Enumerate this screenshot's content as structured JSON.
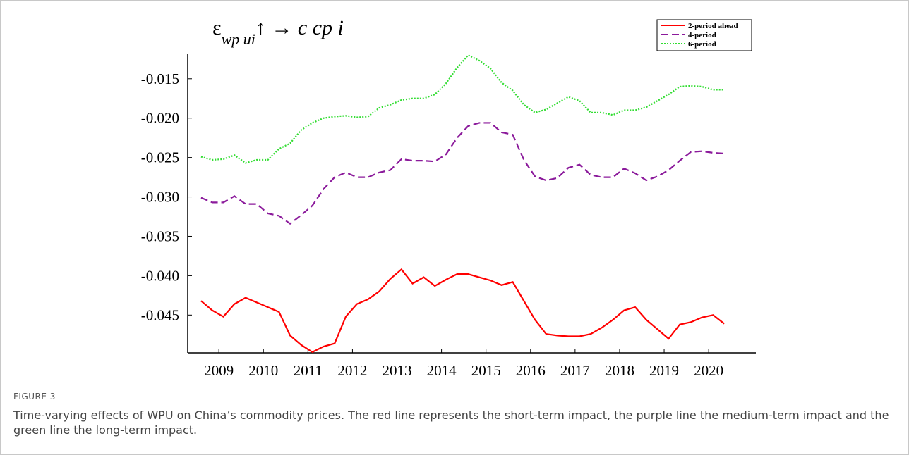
{
  "chart_data": {
    "type": "line",
    "annotation": {
      "symbol": "ε",
      "subscript": "wp ui",
      "rest": "↑ → c cp i"
    },
    "x": [
      2008.6,
      2008.85,
      2009.1,
      2009.35,
      2009.6,
      2009.85,
      2010.1,
      2010.35,
      2010.6,
      2010.85,
      2011.1,
      2011.35,
      2011.6,
      2011.85,
      2012.1,
      2012.35,
      2012.6,
      2012.85,
      2013.1,
      2013.35,
      2013.6,
      2013.85,
      2014.1,
      2014.35,
      2014.6,
      2014.85,
      2015.1,
      2015.35,
      2015.6,
      2015.85,
      2016.1,
      2016.35,
      2016.6,
      2016.85,
      2017.1,
      2017.35,
      2017.6,
      2017.85,
      2018.1,
      2018.35,
      2018.6,
      2018.85,
      2019.1,
      2019.35,
      2019.6,
      2019.85,
      2020.1,
      2020.35
    ],
    "series": [
      {
        "name": "2-period ahead",
        "color": "#ff0000",
        "dash": "solid",
        "values": [
          -0.0432,
          -0.0444,
          -0.0452,
          -0.0436,
          -0.0428,
          -0.0434,
          -0.044,
          -0.0446,
          -0.0476,
          -0.0488,
          -0.0497,
          -0.049,
          -0.0486,
          -0.0452,
          -0.0436,
          -0.043,
          -0.042,
          -0.0404,
          -0.0392,
          -0.041,
          -0.0402,
          -0.0413,
          -0.0405,
          -0.0398,
          -0.0398,
          -0.0402,
          -0.0406,
          -0.0412,
          -0.0408,
          -0.0432,
          -0.0456,
          -0.0474,
          -0.0476,
          -0.0477,
          -0.0477,
          -0.0474,
          -0.0466,
          -0.0456,
          -0.0444,
          -0.044,
          -0.0456,
          -0.0468,
          -0.048,
          -0.0462,
          -0.0459,
          -0.0453,
          -0.045,
          -0.0461
        ]
      },
      {
        "name": "4-period",
        "color": "#8b1a9b",
        "dash": "dashed",
        "values": [
          -0.0301,
          -0.0307,
          -0.0307,
          -0.0299,
          -0.0309,
          -0.0309,
          -0.0321,
          -0.0324,
          -0.0334,
          -0.0323,
          -0.0311,
          -0.029,
          -0.0275,
          -0.0269,
          -0.0275,
          -0.0275,
          -0.0269,
          -0.0266,
          -0.0252,
          -0.0254,
          -0.0254,
          -0.0255,
          -0.0246,
          -0.0225,
          -0.021,
          -0.0206,
          -0.0206,
          -0.0218,
          -0.0221,
          -0.0253,
          -0.0274,
          -0.0279,
          -0.0276,
          -0.0263,
          -0.0259,
          -0.0272,
          -0.0275,
          -0.0275,
          -0.0264,
          -0.027,
          -0.0279,
          -0.0274,
          -0.0266,
          -0.0254,
          -0.0243,
          -0.0242,
          -0.0244,
          -0.0245
        ]
      },
      {
        "name": "6-period",
        "color": "#33dd33",
        "dash": "dotted",
        "values": [
          -0.0249,
          -0.0253,
          -0.0252,
          -0.0247,
          -0.0257,
          -0.0253,
          -0.0253,
          -0.0239,
          -0.0232,
          -0.0215,
          -0.0206,
          -0.02,
          -0.0198,
          -0.0197,
          -0.0199,
          -0.0198,
          -0.0187,
          -0.0183,
          -0.0177,
          -0.0175,
          -0.0175,
          -0.017,
          -0.0156,
          -0.0136,
          -0.012,
          -0.0127,
          -0.0137,
          -0.0155,
          -0.0165,
          -0.0183,
          -0.0193,
          -0.0189,
          -0.0181,
          -0.0173,
          -0.0178,
          -0.0193,
          -0.0193,
          -0.0196,
          -0.019,
          -0.019,
          -0.0186,
          -0.0178,
          -0.017,
          -0.016,
          -0.0159,
          -0.016,
          -0.0164,
          -0.0164
        ]
      }
    ],
    "xlim": [
      2008.3,
      2021.06
    ],
    "xticks": [
      2009,
      2010,
      2011,
      2012,
      2013,
      2014,
      2015,
      2016,
      2017,
      2018,
      2019,
      2020
    ],
    "ylim": [
      -0.0498,
      -0.0118
    ],
    "yticks": [
      {
        "value": -0.015,
        "label": "-0.015"
      },
      {
        "value": -0.02,
        "label": "-0.020"
      },
      {
        "value": -0.025,
        "label": "-0.025"
      },
      {
        "value": -0.03,
        "label": "-0.030"
      },
      {
        "value": -0.035,
        "label": "-0.035"
      },
      {
        "value": -0.04,
        "label": "-0.040"
      },
      {
        "value": -0.045,
        "label": "-0.045"
      }
    ],
    "legend": "upper right",
    "grid": false
  },
  "figure_label": "FIGURE 3",
  "caption": "Time-varying effects of WPU on China’s commodity prices. The red line represents the short-term impact, the purple line the medium-term impact and the green line the long-term impact."
}
